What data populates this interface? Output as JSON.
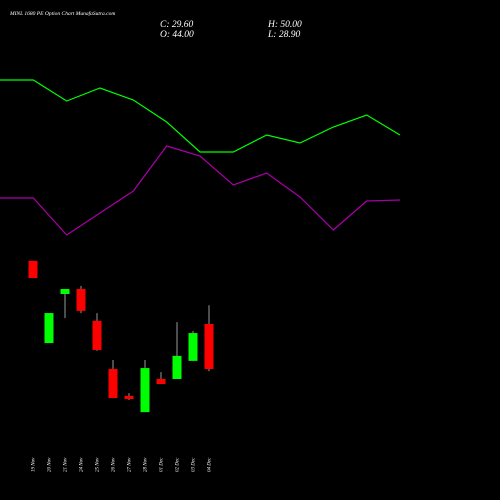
{
  "chart_data": [
    {
      "type": "candlestick",
      "title": "MINL 1680 PE Option Chart MunafaSutra.com",
      "summary": [
        "C: 29.60",
        "H: 50.00",
        "O: 44.00",
        "L: 28.90"
      ],
      "categories": [
        "19 Nov",
        "20 Nov",
        "21 Nov",
        "24 Nov",
        "25 Nov",
        "26 Nov",
        "27 Nov",
        "28 Nov",
        "01 Dec",
        "02 Dec",
        "03 Dec",
        "04 Dec"
      ],
      "open": [
        64.2,
        37.9,
        53.6,
        55.2,
        45.0,
        29.6,
        21.0,
        15.8,
        26.4,
        26.4,
        32.2,
        44.0
      ],
      "high": [
        64.2,
        47.5,
        55.2,
        56.2,
        47.5,
        32.5,
        21.9,
        32.5,
        28.6,
        44.6,
        41.8,
        50.0
      ],
      "low": [
        58.7,
        37.9,
        45.9,
        47.5,
        35.4,
        20.3,
        19.7,
        15.8,
        24.8,
        26.4,
        32.2,
        28.9
      ],
      "close": [
        58.7,
        47.5,
        55.2,
        48.2,
        35.7,
        20.3,
        20.0,
        29.9,
        24.8,
        33.8,
        41.1,
        29.6
      ],
      "up_color": "#00ff00",
      "down_color": "#ff0000",
      "ylim": [
        0,
        80
      ]
    },
    {
      "type": "line",
      "series": [
        {
          "color": "#00ff00",
          "values": [
            90,
            90,
            79.5,
            86,
            80,
            69,
            54,
            54,
            62.5,
            58.5,
            66.5,
            72.5,
            62.5
          ]
        },
        {
          "color": "#aa00aa",
          "values": [
            31,
            31,
            12.5,
            23.5,
            34.5,
            57,
            52,
            37.5,
            43.5,
            31.5,
            15,
            29.5,
            30
          ]
        }
      ],
      "ylim": [
        0,
        100
      ]
    }
  ]
}
